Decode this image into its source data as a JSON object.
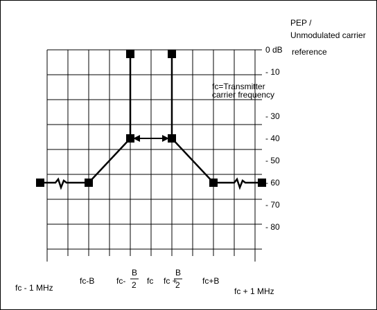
{
  "chart_data": {
    "type": "line",
    "title": "",
    "ylabel": "PEP / Unmodulated carrier reference",
    "ylabel_lines": [
      "PEP /",
      "Unmodulated carrier",
      "reference"
    ],
    "annotation_lines": [
      "fc=Transmitter",
      "carrier frequency"
    ],
    "y_ticks": [
      "0 dB",
      "- 10",
      "- 30",
      "- 40",
      "- 50",
      "- 60",
      "- 70",
      "- 80"
    ],
    "y_tick_values": [
      0,
      -10,
      -30,
      -40,
      -50,
      -60,
      -70,
      -80
    ],
    "ylim": [
      -90,
      0
    ],
    "x_tick_labels": {
      "fc_minus_1mhz": "fc - 1 MHz",
      "fc_minus_b": "fc-B",
      "fc_minus_b2_prefix": "fc-",
      "fc_minus_b2_num": "B",
      "fc_minus_b2_den": "2",
      "fc": "fc",
      "fc_plus_b2_prefix": "fc +",
      "fc_plus_b2_num": "B",
      "fc_plus_b2_den": "2",
      "fc_plus_b": "fc+B",
      "fc_plus_1mhz": "fc + 1 MHz"
    },
    "grid": true,
    "series": [
      {
        "points": [
          {
            "x": "fc - 1 MHz",
            "y": -60
          },
          {
            "x": "fc-B",
            "y": -60
          },
          {
            "x": "fc-B/2",
            "y": -40
          },
          {
            "x": "fc-B/2",
            "y": 0
          },
          {
            "x": "fc+B/2",
            "y": 0
          },
          {
            "x": "fc+B/2",
            "y": -40
          },
          {
            "x": "fc+B",
            "y": -60
          },
          {
            "x": "fc + 1 MHz",
            "y": -60
          }
        ]
      }
    ]
  },
  "colors": {
    "line": "#000000",
    "grid": "#000000",
    "frame": "#000000",
    "background": "#ffffff"
  }
}
